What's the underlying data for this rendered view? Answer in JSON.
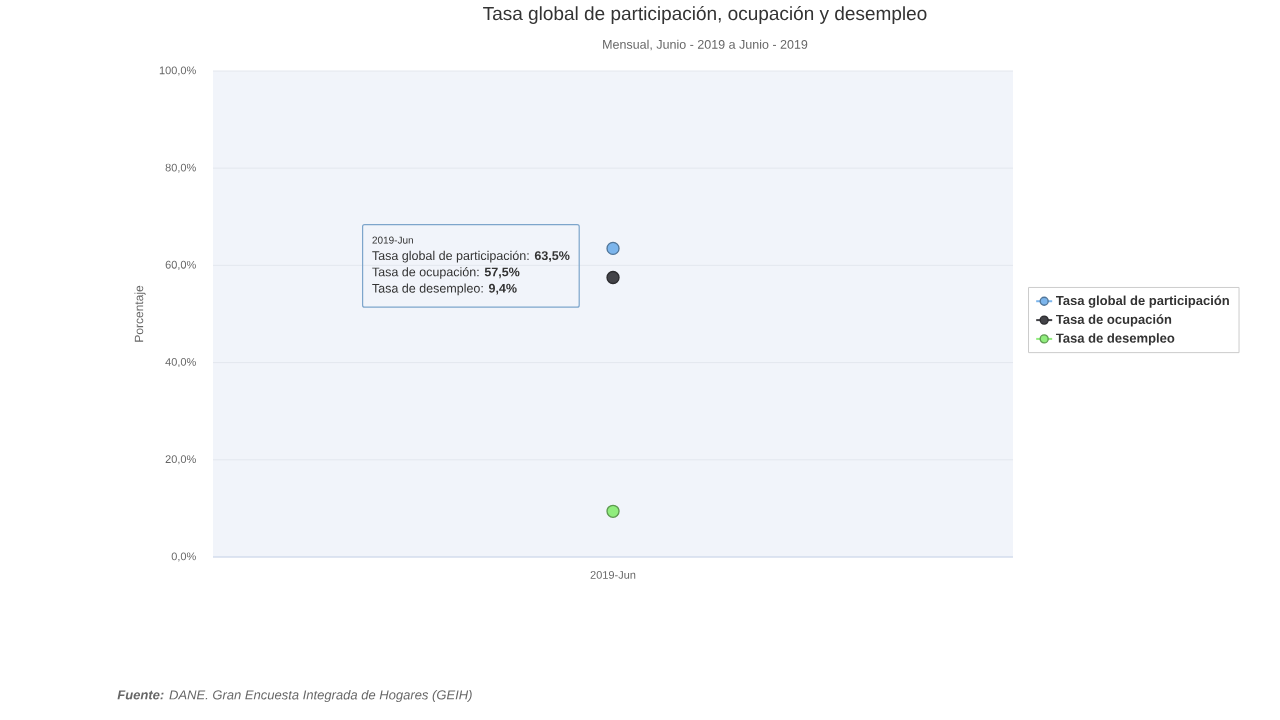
{
  "chart_data": {
    "type": "line",
    "title": "Tasa global de participación, ocupación y desempleo",
    "subtitle": "Mensual, Junio - 2019 a Junio - 2019",
    "ylabel": "Porcentaje",
    "categories": [
      "2019-Jun"
    ],
    "series": [
      {
        "name": "Tasa global de participación",
        "color": "#7cb5ec",
        "values": [
          63.5
        ]
      },
      {
        "name": "Tasa de ocupación",
        "color": "#434348",
        "values": [
          57.5
        ]
      },
      {
        "name": "Tasa de desempleo",
        "color": "#90ed7d",
        "values": [
          9.4
        ]
      }
    ],
    "ylim": [
      0,
      100
    ],
    "yticks": [
      {
        "value": 0,
        "label": "0,0%"
      },
      {
        "value": 20,
        "label": "20,0%"
      },
      {
        "value": 40,
        "label": "40,0%"
      },
      {
        "value": 60,
        "label": "60,0%"
      },
      {
        "value": 80,
        "label": "80,0%"
      },
      {
        "value": 100,
        "label": "100,0%"
      }
    ],
    "grid": "y",
    "legend": "right",
    "marker": "circle",
    "annotations": [
      "2019-Jun",
      "Tasa global de participación: **63,5%**",
      "Tasa de ocupación: **57,5%**",
      "Tasa de desempleo: **9,4%**",
      "**Fuente:** DANE. Gran Encuesta Integrada de Hogares (GEIH)"
    ]
  }
}
